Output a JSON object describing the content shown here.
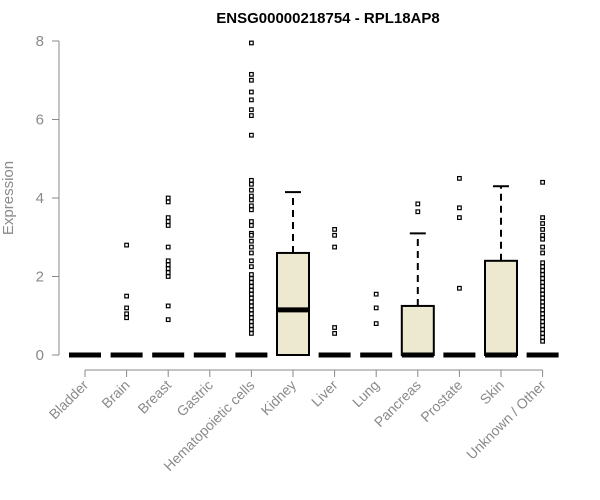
{
  "chart_data": {
    "type": "box",
    "title": "ENSG00000218754 - RPL18AP8",
    "ylabel": "Expression",
    "xlabel": "",
    "ylim": [
      0,
      8
    ],
    "yticks": [
      0,
      2,
      4,
      6,
      8
    ],
    "grid": false,
    "colors": {
      "box_fill": "#ede8d0",
      "stroke": "#000000",
      "axis": "#8a8a8a"
    },
    "categories": [
      "Bladder",
      "Brain",
      "Breast",
      "Gastric",
      "Hematopoietic cells",
      "Kidney",
      "Liver",
      "Lung",
      "Pancreas",
      "Prostate",
      "Skin",
      "Unknown / Other"
    ],
    "boxes": [
      {
        "category": "Bladder",
        "q1": 0,
        "median": 0,
        "q3": 0,
        "whisker_low": 0,
        "whisker_high": 0,
        "outliers": []
      },
      {
        "category": "Brain",
        "q1": 0,
        "median": 0,
        "q3": 0,
        "whisker_low": 0,
        "whisker_high": 0,
        "outliers": [
          2.8,
          1.5,
          1.2,
          1.05,
          0.95
        ]
      },
      {
        "category": "Breast",
        "q1": 0,
        "median": 0,
        "q3": 0,
        "whisker_low": 0,
        "whisker_high": 0,
        "outliers": [
          4.0,
          3.9,
          3.5,
          3.4,
          3.3,
          2.75,
          2.4,
          2.3,
          2.2,
          2.1,
          2.0,
          1.25,
          0.9
        ]
      },
      {
        "category": "Gastric",
        "q1": 0,
        "median": 0,
        "q3": 0,
        "whisker_low": 0,
        "whisker_high": 0,
        "outliers": []
      },
      {
        "category": "Hematopoietic cells",
        "q1": 0,
        "median": 0,
        "q3": 0,
        "whisker_low": 0,
        "whisker_high": 0,
        "outliers": [
          7.95,
          7.15,
          7.0,
          6.7,
          6.5,
          6.25,
          6.1,
          5.6,
          4.45,
          4.35,
          4.2,
          4.05,
          3.95,
          3.8,
          3.7,
          3.4,
          3.3,
          3.1,
          3.05,
          2.9,
          2.75,
          2.6,
          2.4,
          2.25,
          2.05,
          1.95,
          1.85,
          1.75,
          1.65,
          1.55,
          1.45,
          1.35,
          1.25,
          1.15,
          1.05,
          0.95,
          0.85,
          0.75,
          0.65,
          0.55
        ]
      },
      {
        "category": "Kidney",
        "q1": 0,
        "median": 1.15,
        "q3": 2.6,
        "whisker_low": 0,
        "whisker_high": 4.15,
        "outliers": []
      },
      {
        "category": "Liver",
        "q1": 0,
        "median": 0,
        "q3": 0,
        "whisker_low": 0,
        "whisker_high": 0,
        "outliers": [
          3.2,
          3.05,
          2.75,
          0.7,
          0.55
        ]
      },
      {
        "category": "Lung",
        "q1": 0,
        "median": 0,
        "q3": 0,
        "whisker_low": 0,
        "whisker_high": 0,
        "outliers": [
          1.55,
          1.2,
          0.8
        ]
      },
      {
        "category": "Pancreas",
        "q1": 0,
        "median": 0,
        "q3": 1.25,
        "whisker_low": 0,
        "whisker_high": 3.1,
        "outliers": [
          3.85,
          3.65
        ]
      },
      {
        "category": "Prostate",
        "q1": 0,
        "median": 0,
        "q3": 0,
        "whisker_low": 0,
        "whisker_high": 0,
        "outliers": [
          4.5,
          3.75,
          3.5,
          1.7
        ]
      },
      {
        "category": "Skin",
        "q1": 0,
        "median": 0,
        "q3": 2.4,
        "whisker_low": 0,
        "whisker_high": 4.3,
        "outliers": []
      },
      {
        "category": "Unknown / Other",
        "q1": 0,
        "median": 0,
        "q3": 0,
        "whisker_low": 0,
        "whisker_high": 0,
        "outliers": [
          4.4,
          3.5,
          3.35,
          3.2,
          3.05,
          2.95,
          2.75,
          2.6,
          2.35,
          2.25,
          2.15,
          2.05,
          1.95,
          1.85,
          1.75,
          1.65,
          1.55,
          1.45,
          1.35,
          1.25,
          1.15,
          1.05,
          0.95,
          0.85,
          0.75,
          0.65,
          0.55,
          0.45,
          0.35
        ]
      }
    ]
  }
}
